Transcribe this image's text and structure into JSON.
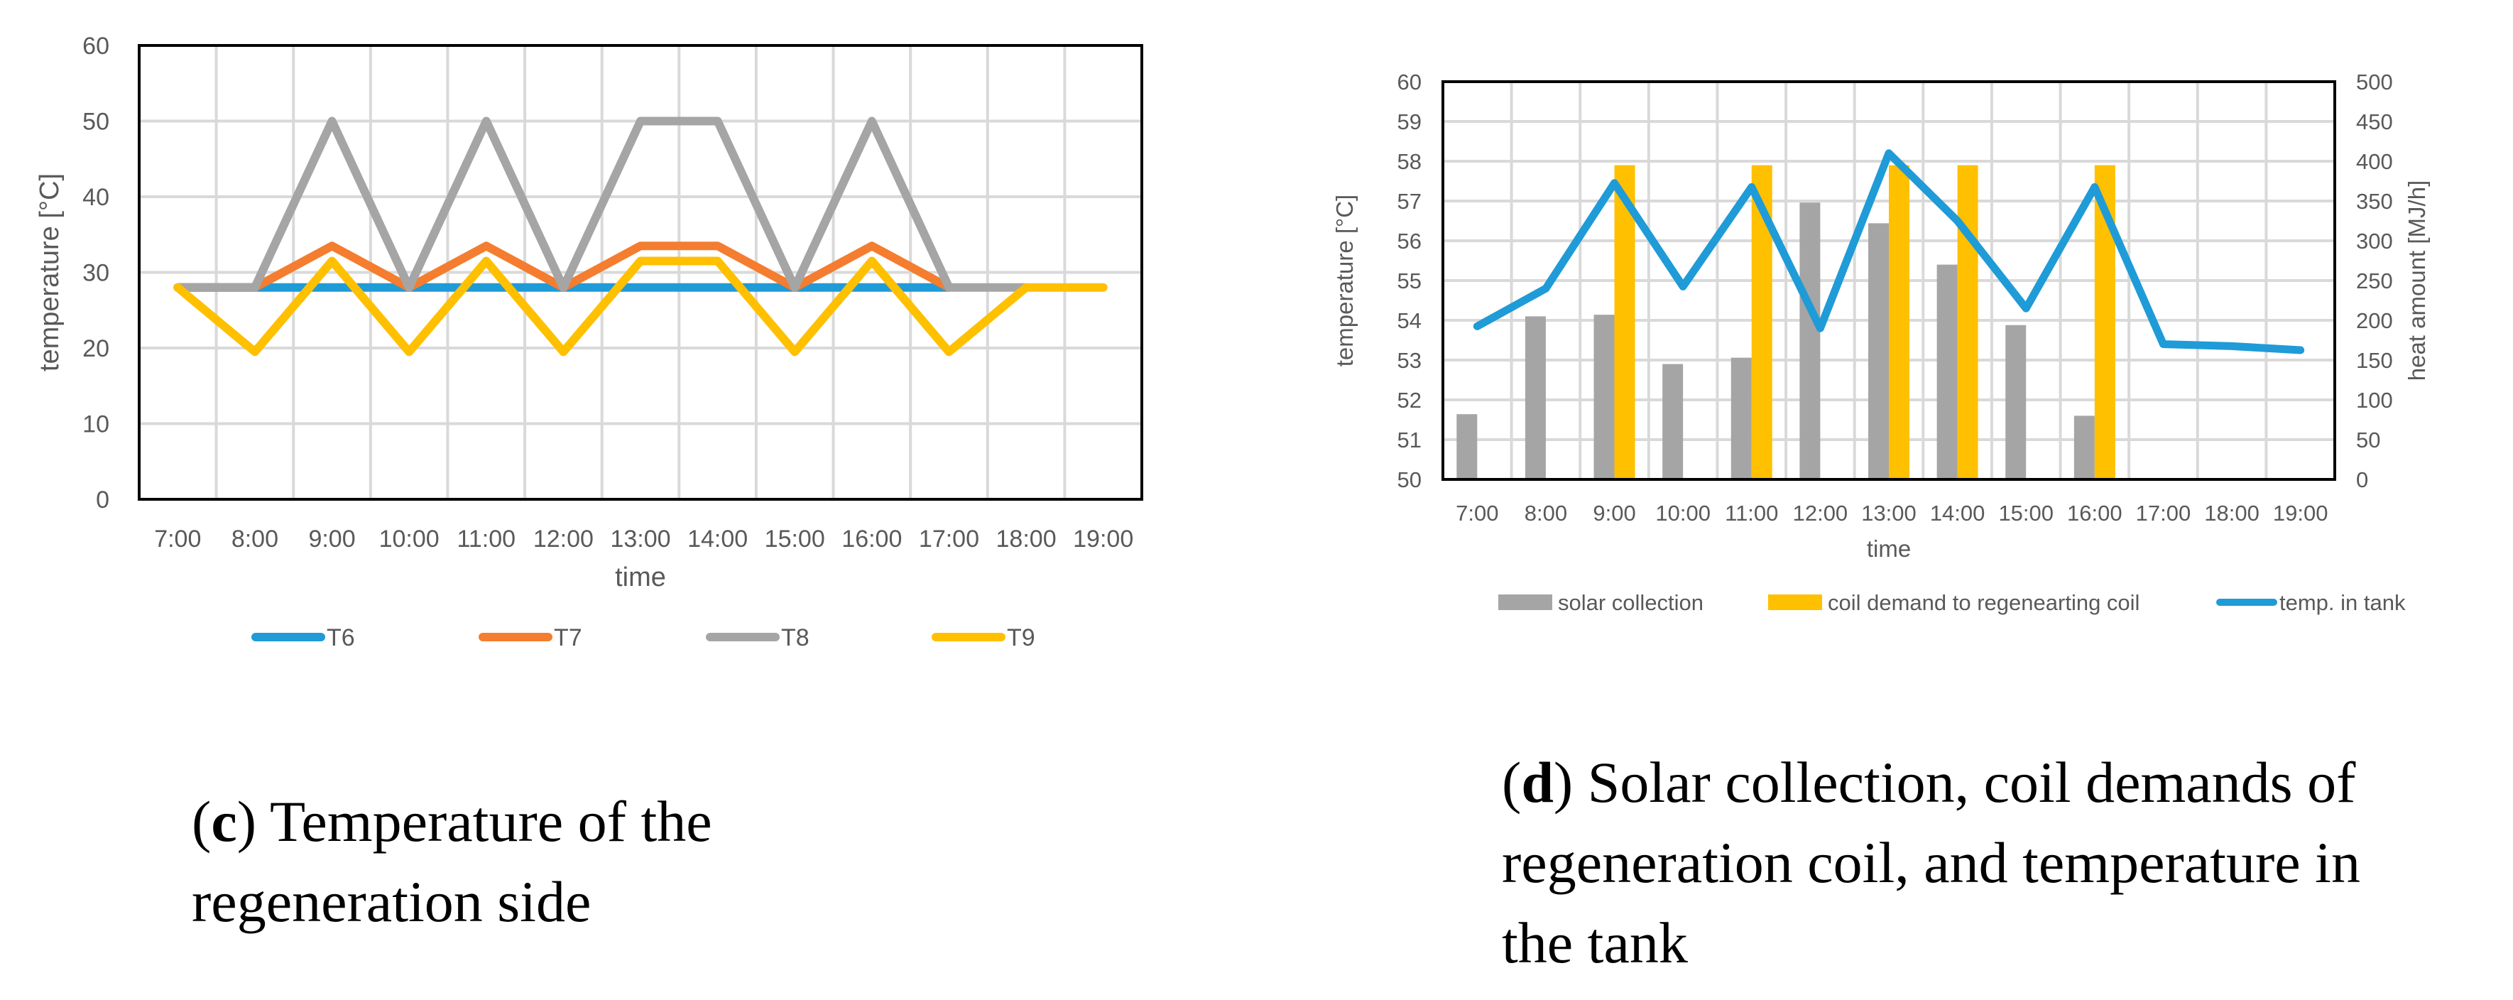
{
  "chart_data": [
    {
      "type": "line",
      "title": "",
      "xlabel": "time",
      "ylabel": "temperature [°C]",
      "ylim": [
        0,
        60
      ],
      "yticks": [
        0,
        10,
        20,
        30,
        40,
        50,
        60
      ],
      "grid": true,
      "legend_position": "bottom",
      "categories": [
        "7:00",
        "8:00",
        "9:00",
        "10:00",
        "11:00",
        "12:00",
        "13:00",
        "14:00",
        "15:00",
        "16:00",
        "17:00",
        "18:00",
        "19:00"
      ],
      "series": [
        {
          "name": "T6",
          "color": "#1f9bd7",
          "values": [
            28,
            28,
            28,
            28,
            28,
            28,
            28,
            28,
            28,
            28,
            28,
            null,
            null
          ]
        },
        {
          "name": "T7",
          "color": "#f47d30",
          "values": [
            28,
            28,
            33.5,
            28,
            33.5,
            28,
            33.5,
            33.5,
            28,
            33.5,
            28,
            null,
            null
          ]
        },
        {
          "name": "T8",
          "color": "#a5a5a5",
          "values": [
            28,
            28,
            50,
            28,
            50,
            28,
            50,
            50,
            28,
            50,
            28,
            28,
            null
          ]
        },
        {
          "name": "T9",
          "color": "#ffc000",
          "values": [
            28,
            19.5,
            31.5,
            19.5,
            31.5,
            19.5,
            31.5,
            31.5,
            19.5,
            31.5,
            19.5,
            28,
            28
          ]
        }
      ]
    },
    {
      "type": "bar+line",
      "title": "",
      "xlabel": "time",
      "ylabel": "temperature [°C]",
      "y2label": "heat amount [MJ/h]",
      "ylim": [
        50,
        60
      ],
      "y2lim": [
        0,
        500
      ],
      "yticks": [
        50,
        51,
        52,
        53,
        54,
        55,
        56,
        57,
        58,
        59,
        60
      ],
      "y2ticks": [
        0,
        50,
        100,
        150,
        200,
        250,
        300,
        350,
        400,
        450,
        500
      ],
      "grid": true,
      "legend_position": "bottom",
      "categories": [
        "7:00",
        "8:00",
        "9:00",
        "10:00",
        "11:00",
        "12:00",
        "13:00",
        "14:00",
        "15:00",
        "16:00",
        "17:00",
        "18:00",
        "19:00"
      ],
      "series": [
        {
          "name": "solar collection",
          "kind": "bar",
          "axis": "y2",
          "color": "#a5a5a5",
          "values": [
            82,
            205,
            207,
            145,
            153,
            348,
            322,
            270,
            194,
            80,
            0,
            0,
            0
          ]
        },
        {
          "name": "coil demand to regenearting coil",
          "kind": "bar",
          "axis": "y2",
          "color": "#ffc000",
          "values": [
            0,
            0,
            395,
            0,
            395,
            0,
            395,
            395,
            0,
            395,
            0,
            0,
            0
          ]
        },
        {
          "name": "temp. in tank",
          "kind": "line",
          "axis": "y",
          "color": "#1f9bd7",
          "values": [
            53.85,
            54.8,
            57.45,
            54.85,
            57.35,
            53.8,
            58.2,
            56.5,
            54.3,
            57.35,
            53.4,
            53.35,
            53.25
          ]
        }
      ]
    }
  ],
  "captions": {
    "c": {
      "letter": "c",
      "line1_rest": ") Temperature of the",
      "line2": "regeneration side"
    },
    "d": {
      "letter": "d",
      "line1_rest": ") Solar collection, coil demands of",
      "line2": "regeneration coil, and temperature in",
      "line3": "the tank"
    }
  }
}
